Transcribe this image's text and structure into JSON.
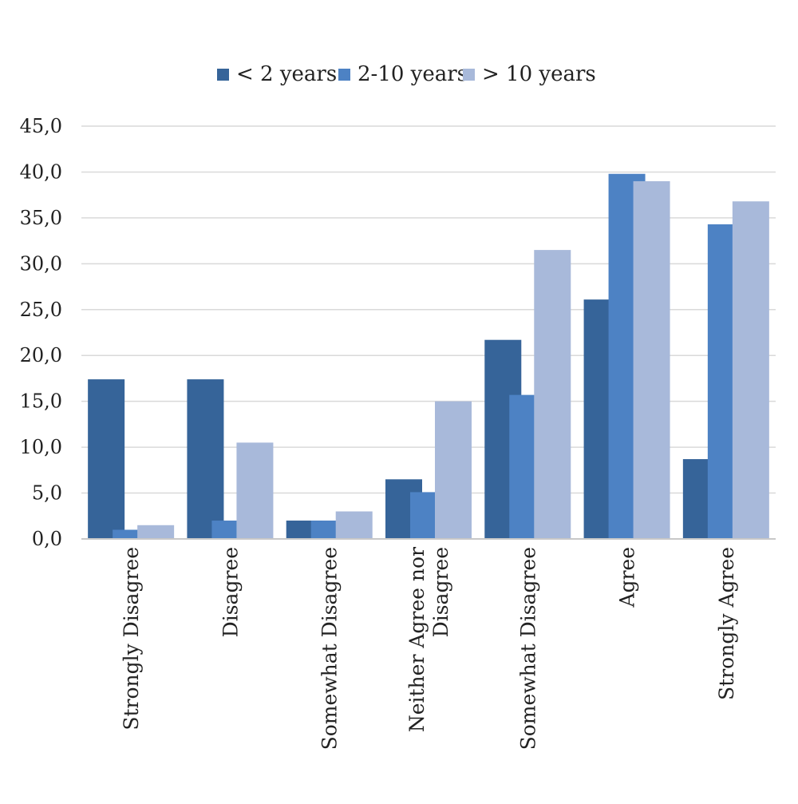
{
  "chart_data": {
    "type": "bar",
    "title": "",
    "xlabel": "",
    "ylabel": "",
    "ylim": [
      0,
      45
    ],
    "yticks": [
      "0,0",
      "5,0",
      "10,0",
      "15,0",
      "20,0",
      "25,0",
      "30,0",
      "35,0",
      "40,0",
      "45,0"
    ],
    "grid": true,
    "legend_position": "top",
    "categories": [
      [
        "Strongly Disagree"
      ],
      [
        "Disagree"
      ],
      [
        "Somewhat Disagree"
      ],
      [
        "Neither Agree nor",
        "Disagree"
      ],
      [
        "Somewhat  Disagree"
      ],
      [
        "Agree"
      ],
      [
        "Strongly Agree"
      ]
    ],
    "series": [
      {
        "name": "< 2 years",
        "color": "#366499",
        "values": [
          17.4,
          17.4,
          2.0,
          6.5,
          21.7,
          26.1,
          8.7
        ]
      },
      {
        "name": "2-10 years",
        "color": "#4d82c4",
        "values": [
          1.0,
          2.0,
          2.0,
          5.1,
          15.7,
          39.8,
          34.3
        ]
      },
      {
        "name": "> 10 years",
        "color": "#a8b9da",
        "values": [
          1.5,
          10.5,
          3.0,
          15.0,
          31.5,
          39.0,
          36.8
        ]
      }
    ]
  }
}
